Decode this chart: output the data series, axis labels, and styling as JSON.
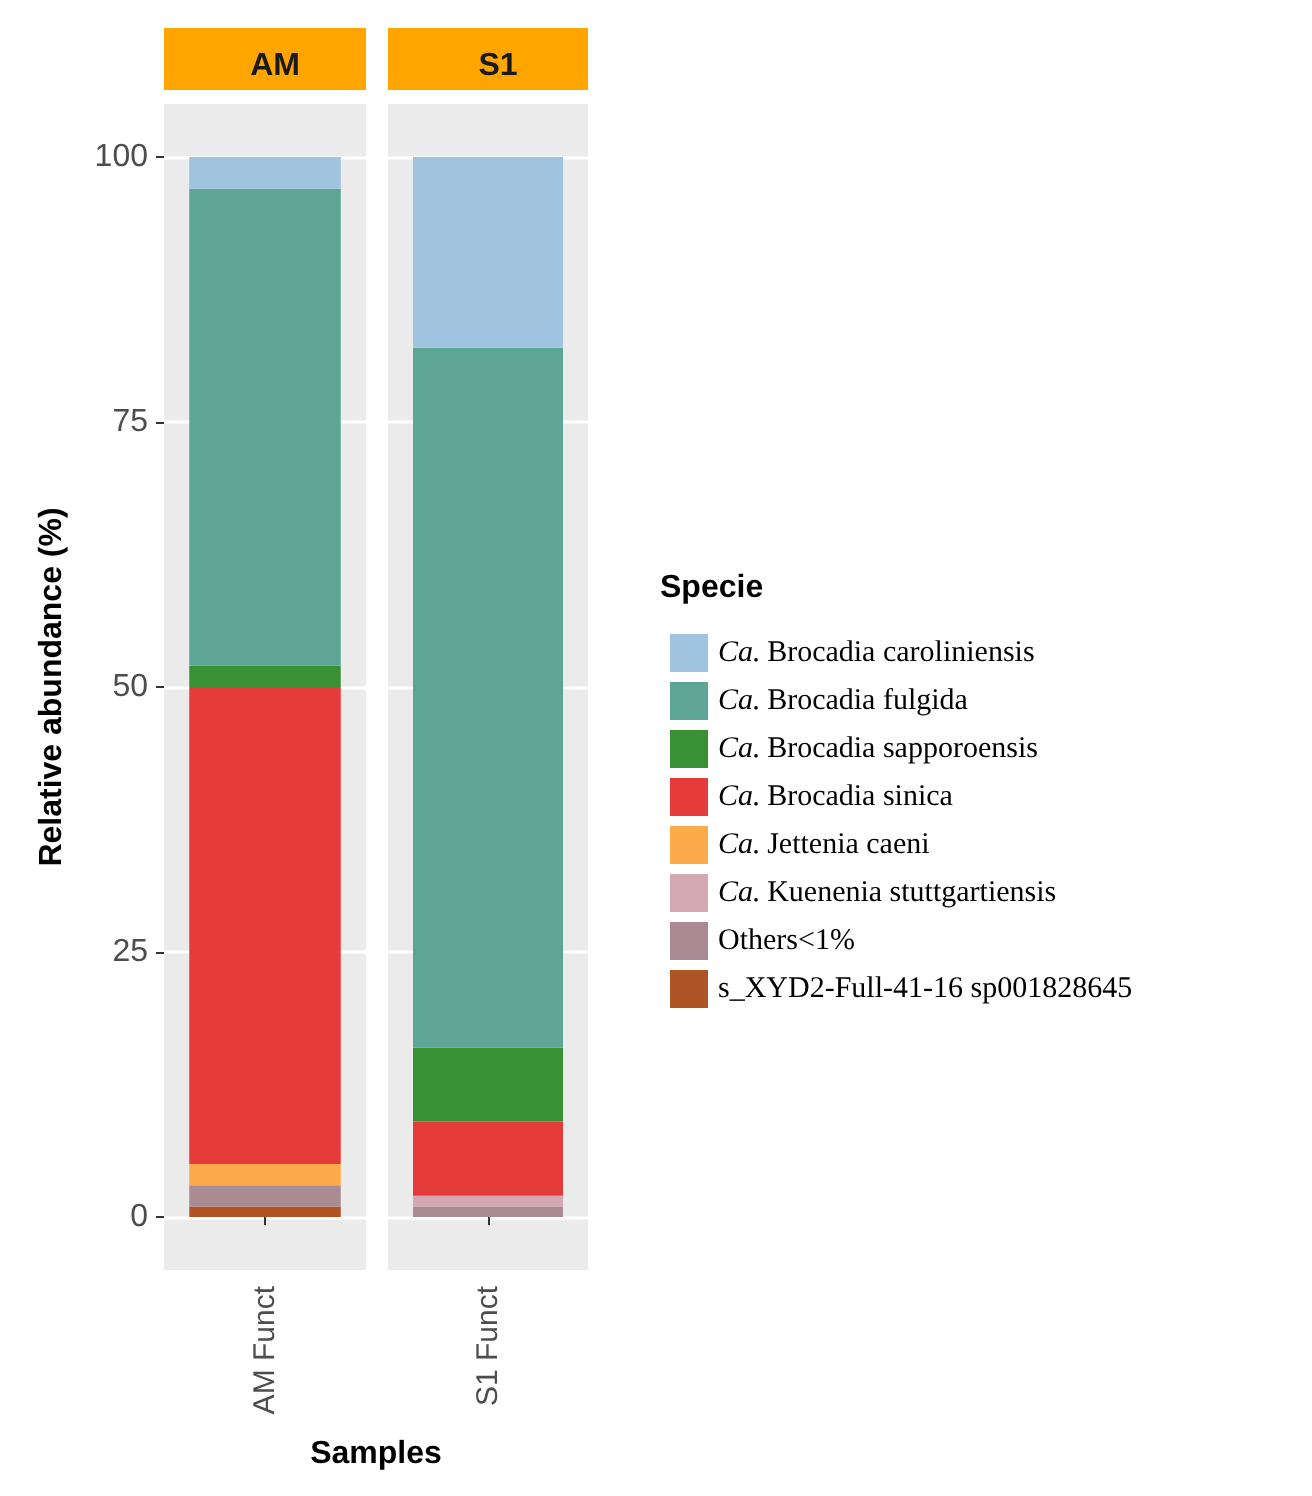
{
  "chart_data": [
    {
      "type": "bar",
      "title": "AM",
      "categories": [
        "AM Funct"
      ],
      "stacked": true,
      "xlabel": "Samples",
      "ylabel": "Relative abundance (%)",
      "ylim": [
        -5,
        105
      ],
      "yticks": [
        0,
        25,
        50,
        75,
        100
      ],
      "grid": "y",
      "legend": "right",
      "legend_title": "Specie",
      "series": [
        {
          "name": "s_XYD2-Full-41-16 sp001828645",
          "color": "#ae5425",
          "values": [
            1
          ]
        },
        {
          "name": "Others<1%",
          "color": "#ab8b93",
          "values": [
            2
          ]
        },
        {
          "name": "Ca. Kuenenia stuttgartiensis",
          "color": "#d4a9b4",
          "values": [
            0
          ]
        },
        {
          "name": "Ca. Jettenia caeni",
          "color": "#fdab4a",
          "values": [
            2
          ]
        },
        {
          "name": "Ca. Brocadia sinica",
          "color": "#e63b3b",
          "values": [
            45
          ]
        },
        {
          "name": "Ca. Brocadia sapporoensis",
          "color": "#3a9035",
          "values": [
            2
          ]
        },
        {
          "name": "Ca. Brocadia fulgida",
          "color": "#5fa596",
          "values": [
            45
          ]
        },
        {
          "name": "Ca. Brocadia caroliniensis",
          "color": "#a0c4e0",
          "values": [
            3
          ]
        }
      ]
    },
    {
      "type": "bar",
      "title": "S1",
      "categories": [
        "S1 Funct"
      ],
      "stacked": true,
      "ylim": [
        -5,
        105
      ],
      "yticks": [
        0,
        25,
        50,
        75,
        100
      ],
      "grid": "y",
      "tick_labels": "x",
      "series": [
        {
          "color": "#ae5425",
          "values": [
            0
          ]
        },
        {
          "color": "#ab8b93",
          "values": [
            1
          ]
        },
        {
          "color": "#d4a9b4",
          "values": [
            1
          ]
        },
        {
          "color": "#fdab4a",
          "values": [
            0
          ]
        },
        {
          "color": "#e63b3b",
          "values": [
            7
          ]
        },
        {
          "color": "#3a9035",
          "values": [
            7
          ]
        },
        {
          "color": "#5fa596",
          "values": [
            66
          ]
        },
        {
          "color": "#a0c4e0",
          "values": [
            18
          ]
        }
      ]
    }
  ]
}
